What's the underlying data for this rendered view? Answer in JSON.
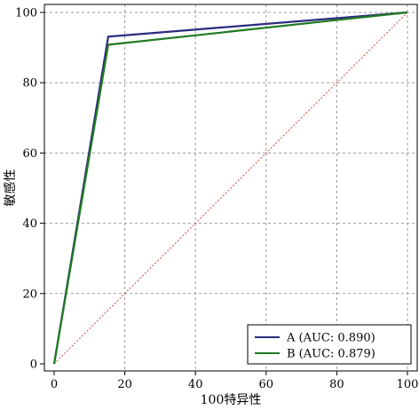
{
  "chart_data": {
    "type": "line",
    "title": "",
    "xlabel": "100特异性",
    "ylabel": "敏感性",
    "xlim": [
      0,
      100
    ],
    "ylim": [
      0,
      100
    ],
    "x_ticks": [
      0,
      20,
      40,
      60,
      80,
      100
    ],
    "y_ticks": [
      0,
      20,
      40,
      60,
      80,
      100
    ],
    "grid": true,
    "legend_position": "bottom-right",
    "series": [
      {
        "name": "A (AUC: 0.890)",
        "color": "#2b2b7f",
        "x": [
          0,
          15.3,
          100
        ],
        "y": [
          0,
          93.1,
          100
        ]
      },
      {
        "name": "B (AUC: 0.879)",
        "color": "#1f7a1f",
        "x": [
          0,
          15.3,
          100
        ],
        "y": [
          0,
          90.8,
          100
        ]
      }
    ],
    "reference_line": {
      "color": "#c0504d",
      "x": [
        0,
        100
      ],
      "y": [
        0,
        100
      ]
    }
  }
}
